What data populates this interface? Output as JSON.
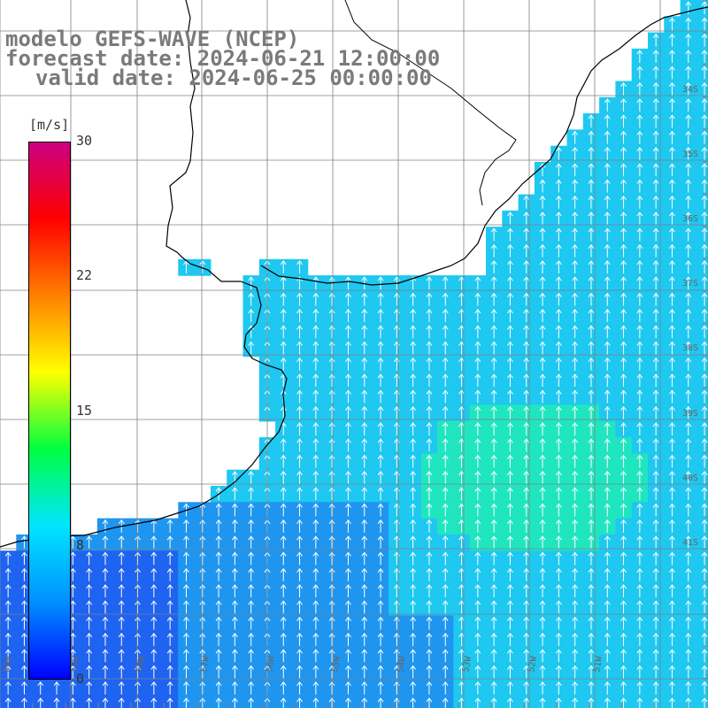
{
  "title": {
    "line1": "modelo GEFS-WAVE (NCEP)",
    "line2": "forecast date: 2024-06-21 12:00:00",
    "line3": "valid date: 2024-06-25 00:00:00"
  },
  "colorbar": {
    "unit": "[m/s]",
    "ticks": [
      "30",
      "22",
      "15",
      "8",
      "0"
    ],
    "range": [
      0,
      30
    ],
    "colors": [
      "#0000ff",
      "#0090ff",
      "#00e5ff",
      "#00ff40",
      "#ffff00",
      "#ff8000",
      "#ff0000",
      "#cc0080"
    ]
  },
  "map": {
    "lat_labels": [
      "34S",
      "35S",
      "36S",
      "37S",
      "38S",
      "39S",
      "40S",
      "41S"
    ],
    "lon_labels": [
      "60W",
      "59W",
      "58W",
      "57W",
      "56W",
      "55W",
      "54W",
      "53W",
      "52W",
      "51W"
    ],
    "colors": {
      "land": "#ffffff",
      "grid": "#808080",
      "coast": "#000000",
      "arrows": "#ffffff",
      "ocean_dark": "#1e64f0",
      "ocean_mid": "#1e96f0",
      "ocean_light": "#1ec8f0",
      "ocean_strong": "#20e6c0"
    }
  }
}
